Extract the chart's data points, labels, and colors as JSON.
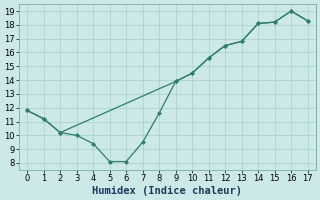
{
  "xlabel": "Humidex (Indice chaleur)",
  "bg_color": "#cce8e8",
  "line_color": "#2e7d6e",
  "grid_color": "#aad4d4",
  "xlim": [
    -0.5,
    17.5
  ],
  "ylim": [
    7.5,
    19.5
  ],
  "xticks": [
    0,
    1,
    2,
    3,
    4,
    5,
    6,
    7,
    8,
    9,
    10,
    11,
    12,
    13,
    14,
    15,
    16,
    17
  ],
  "yticks": [
    8,
    9,
    10,
    11,
    12,
    13,
    14,
    15,
    16,
    17,
    18,
    19
  ],
  "line1_x": [
    0,
    1,
    2,
    3,
    4,
    5,
    6,
    7,
    8,
    9,
    10,
    11,
    12,
    13,
    14,
    15,
    16,
    17
  ],
  "line1_y": [
    11.8,
    11.2,
    10.2,
    10.0,
    9.4,
    8.1,
    8.1,
    9.5,
    11.6,
    13.9,
    14.5,
    15.6,
    16.5,
    16.8,
    18.1,
    18.2,
    19.0,
    18.3
  ],
  "line2_x": [
    0,
    1,
    2,
    9,
    10,
    11,
    12,
    13,
    14,
    15,
    16,
    17
  ],
  "line2_y": [
    11.8,
    11.2,
    10.2,
    13.9,
    14.5,
    15.6,
    16.5,
    16.8,
    18.1,
    18.2,
    19.0,
    18.3
  ],
  "markersize": 2.5,
  "linewidth": 0.9,
  "xlabel_fontsize": 7.5,
  "tick_fontsize": 6
}
